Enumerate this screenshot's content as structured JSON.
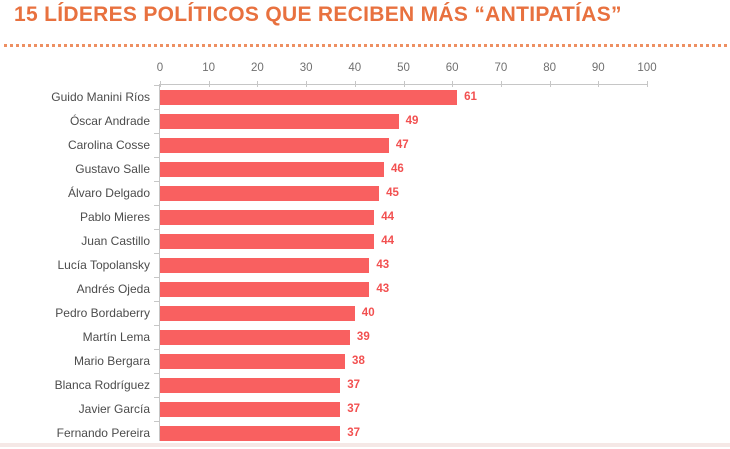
{
  "header": {
    "title": "15 LÍDERES POLÍTICOS QUE RECIBEN MÁS “ANTIPATÍAS”"
  },
  "chart_data": {
    "type": "bar",
    "orientation": "horizontal",
    "title": "15 LÍDERES POLÍTICOS QUE RECIBEN MÁS “ANTIPATÍAS”",
    "categories": [
      "Guido Manini Ríos",
      "Óscar Andrade",
      "Carolina Cosse",
      "Gustavo Salle",
      "Álvaro Delgado",
      "Pablo Mieres",
      "Juan Castillo",
      "Lucía Topolansky",
      "Andrés Ojeda",
      "Pedro Bordaberry",
      "Martín Lema",
      "Mario Bergara",
      "Blanca Rodríguez",
      "Javier García",
      "Fernando Pereira"
    ],
    "values": [
      61,
      49,
      47,
      46,
      45,
      44,
      44,
      43,
      43,
      40,
      39,
      38,
      37,
      37,
      37
    ],
    "x_ticks": [
      0,
      10,
      20,
      30,
      40,
      50,
      60,
      70,
      80,
      90,
      100
    ],
    "xlim": [
      0,
      100
    ],
    "axis_position": "top",
    "grid": false,
    "legend": null,
    "value_labels": true
  },
  "colors": {
    "title": "#E8713F",
    "separator_dots": "#ED8F62",
    "bar": "#F96060",
    "value_label": "#F25050",
    "category_label": "#4C4C4C",
    "tick_label": "#707070",
    "axis_line": "#C6C6C6"
  }
}
